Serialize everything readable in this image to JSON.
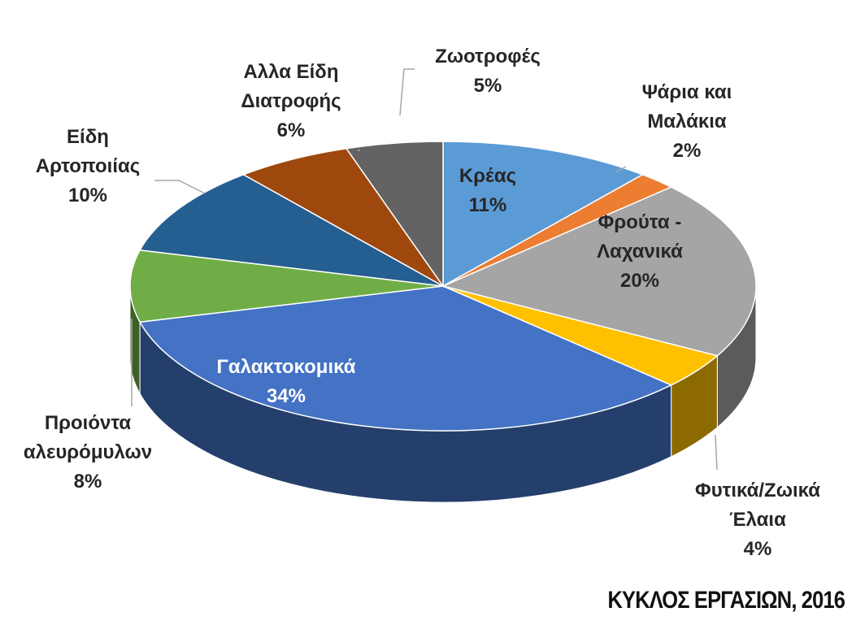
{
  "chart_data": {
    "type": "pie3d",
    "categories": [
      "Κρέας",
      "Ψάρια και Μαλάκια",
      "Φρούτα - Λαχανικά",
      "Φυτικά/Ζωικά Έλαια",
      "Γαλακτοκομικά",
      "Προιόντα αλευρόμυλων",
      "Είδη Αρτοποιίας",
      "Αλλα Είδη Διατροφής",
      "Ζωοτροφές"
    ],
    "values": [
      11,
      2,
      20,
      4,
      34,
      8,
      10,
      6,
      5
    ],
    "value_labels": [
      "11%",
      "2%",
      "20%",
      "4%",
      "34%",
      "8%",
      "10%",
      "6%",
      "5%"
    ],
    "colors": [
      "#5b9bd5",
      "#ed7d31",
      "#a5a5a5",
      "#ffc000",
      "#4472c4",
      "#70ad47",
      "#255e91",
      "#9e480e",
      "#636363"
    ],
    "source": "ΚΥΚΛΟΣ ΕΡΓΑΣΙΩΝ, 2016"
  }
}
